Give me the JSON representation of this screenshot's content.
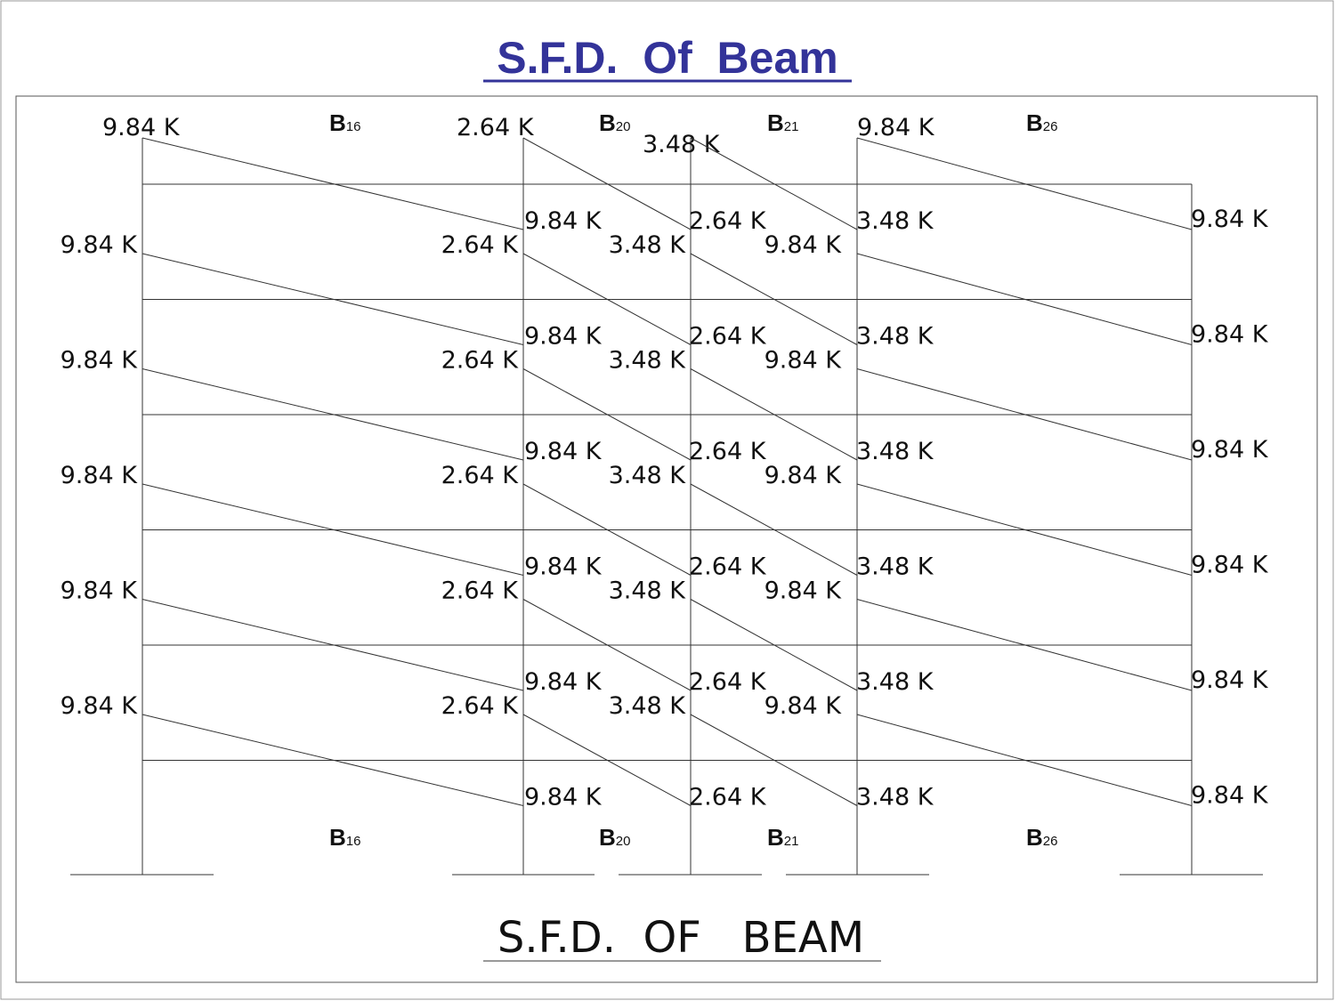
{
  "header": {
    "title": "S.F.D.  Of  Beam"
  },
  "beam_labels_top": [
    {
      "letter": "B",
      "sub": "16"
    },
    {
      "letter": "B",
      "sub": "20"
    },
    {
      "letter": "B",
      "sub": "21"
    },
    {
      "letter": "B",
      "sub": "26"
    }
  ],
  "beam_labels_bottom": [
    {
      "letter": "B",
      "sub": "16"
    },
    {
      "letter": "B",
      "sub": "20"
    },
    {
      "letter": "B",
      "sub": "21"
    },
    {
      "letter": "B",
      "sub": "26"
    }
  ],
  "top_labels": [
    "9.84 K",
    "2.64 K",
    "3.48 K",
    "9.84 K"
  ],
  "rows": [
    {
      "end": [
        "9.84 K",
        "2.64 K",
        "3.48 K",
        "9.84 K"
      ],
      "start": [
        "9.84 K",
        "2.64 K",
        "3.48 K",
        "9.84 K"
      ]
    },
    {
      "end": [
        "9.84 K",
        "2.64 K",
        "3.48 K",
        "9.84 K"
      ],
      "start": [
        "9.84 K",
        "2.64 K",
        "3.48 K",
        "9.84 K"
      ]
    },
    {
      "end": [
        "9.84 K",
        "2.64 K",
        "3.48 K",
        "9.84 K"
      ],
      "start": [
        "9.84 K",
        "2.64 K",
        "3.48 K",
        "9.84 K"
      ]
    },
    {
      "end": [
        "9.84 K",
        "2.64 K",
        "3.48 K",
        "9.84 K"
      ],
      "start": [
        "9.84 K",
        "2.64 K",
        "3.48 K",
        "9.84 K"
      ]
    },
    {
      "end": [
        "9.84 K",
        "2.64 K",
        "3.48 K",
        "9.84 K"
      ],
      "start": [
        "9.84 K",
        "2.64 K",
        "3.48 K",
        "9.84 K"
      ]
    },
    {
      "end": [
        "9.84 K",
        "2.64 K",
        "3.48 K",
        "9.84 K"
      ]
    }
  ],
  "caption": "S.F.D.  OF   BEAM"
}
